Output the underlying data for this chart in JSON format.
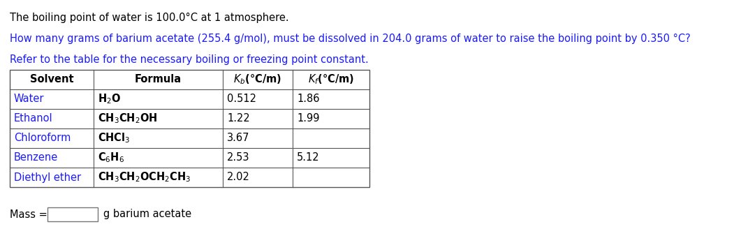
{
  "line1": "The boiling point of water is 100.0°C at 1 atmosphere.",
  "line2": "How many grams of barium acetate (255.4 g/mol), must be dissolved in 204.0 grams of water to raise the boiling point by 0.350 °C?",
  "line3": "Refer to the table for the necessary boiling or freezing point constant.",
  "mass_label": "Mass =",
  "mass_unit": "g barium acetate",
  "text_color_blue": "#1a1aff",
  "text_color_black": "#000000",
  "bg_color": "#ffffff",
  "row_solvents": [
    "Water",
    "Ethanol",
    "Chloroform",
    "Benzene",
    "Diethyl ether"
  ],
  "row_kb": [
    "0.512",
    "1.22",
    "3.67",
    "2.53",
    "2.02"
  ],
  "row_kf": [
    "1.86",
    "1.99",
    "",
    "5.12",
    ""
  ],
  "font_size": 10.5,
  "table_font_size": 10.5
}
